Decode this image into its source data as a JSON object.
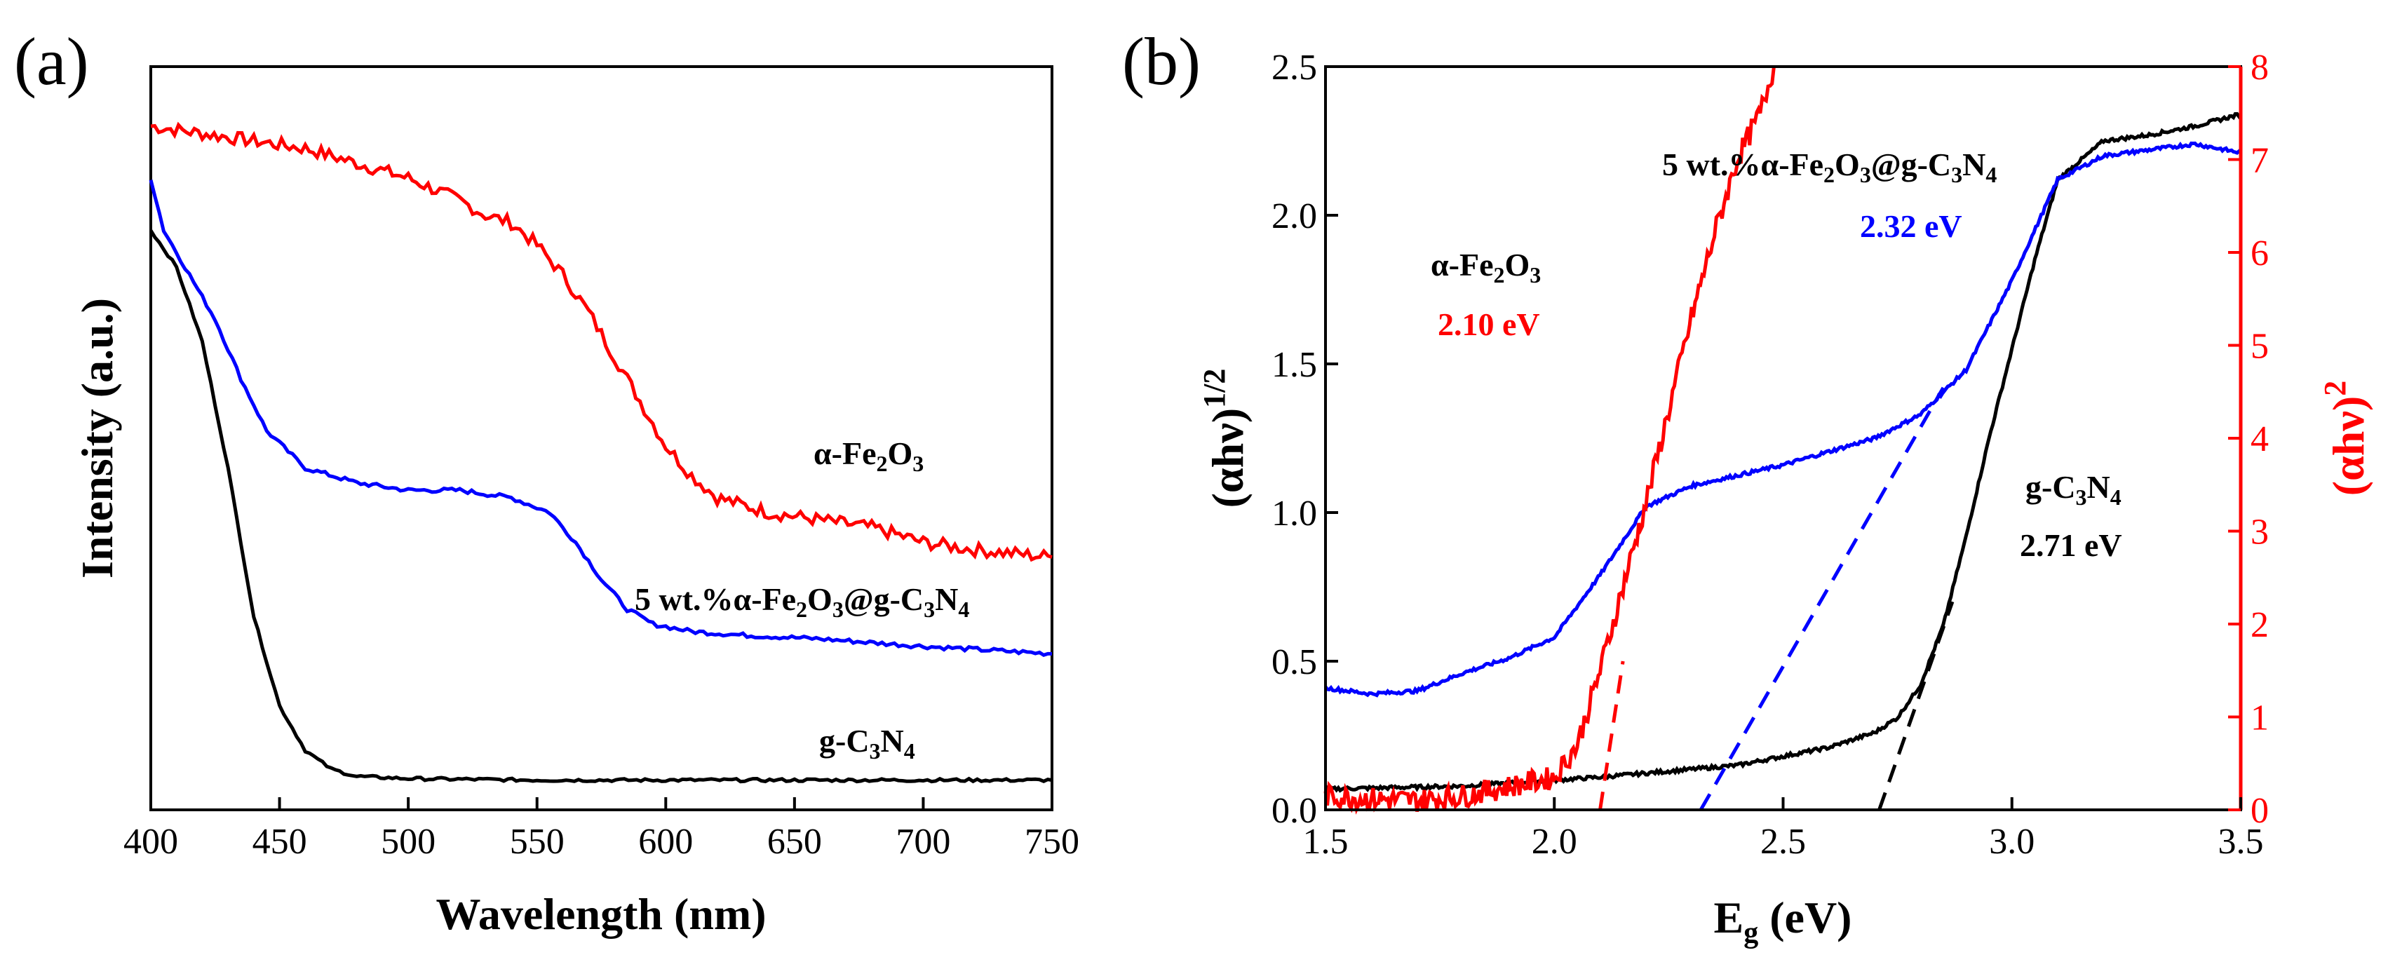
{
  "chart_data": [
    {
      "panel": "(a)",
      "type": "line",
      "xlabel": "Wavelength (nm)",
      "ylabel": "Intensity (a.u.)",
      "xlim": [
        400,
        750
      ],
      "ylim": [
        0,
        1
      ],
      "xticks": [
        400,
        450,
        500,
        550,
        600,
        650,
        700,
        750
      ],
      "yticks_shown": false,
      "series": [
        {
          "name": "α-Fe2O3",
          "label_main": "α-Fe",
          "label_sub1": "2",
          "label_mid": "O",
          "label_sub2": "3",
          "color": "#ff0000",
          "x": [
            400,
            420,
            440,
            460,
            480,
            500,
            520,
            530,
            540,
            550,
            560,
            570,
            580,
            590,
            600,
            610,
            620,
            640,
            660,
            680,
            700,
            720,
            750
          ],
          "y": [
            0.92,
            0.91,
            0.9,
            0.89,
            0.87,
            0.85,
            0.82,
            0.8,
            0.79,
            0.76,
            0.72,
            0.67,
            0.61,
            0.55,
            0.49,
            0.45,
            0.42,
            0.4,
            0.39,
            0.38,
            0.36,
            0.35,
            0.34
          ]
        },
        {
          "name": "5 wt.%α-Fe2O3@g-C3N4",
          "label_main": "5 wt.%α-Fe",
          "label_sub1": "2",
          "label_mid": "O",
          "label_sub2": "3",
          "label_mid2": "@g-C",
          "label_sub3": "3",
          "label_mid3": "N",
          "label_sub4": "4",
          "color": "#0000ff",
          "x": [
            400,
            405,
            415,
            425,
            435,
            445,
            460,
            480,
            500,
            520,
            540,
            555,
            565,
            575,
            585,
            595,
            610,
            630,
            660,
            700,
            750
          ],
          "y": [
            0.85,
            0.78,
            0.72,
            0.66,
            0.58,
            0.51,
            0.46,
            0.44,
            0.43,
            0.43,
            0.42,
            0.4,
            0.36,
            0.31,
            0.27,
            0.25,
            0.24,
            0.235,
            0.23,
            0.22,
            0.21
          ]
        },
        {
          "name": "g-C3N4",
          "label_main": "g-C",
          "label_sub1": "3",
          "label_mid": "N",
          "label_sub2": "4",
          "color": "#000000",
          "x": [
            400,
            410,
            420,
            430,
            440,
            450,
            460,
            470,
            480,
            500,
            550,
            600,
            650,
            700,
            750
          ],
          "y": [
            0.78,
            0.73,
            0.63,
            0.46,
            0.26,
            0.14,
            0.08,
            0.055,
            0.045,
            0.042,
            0.04,
            0.04,
            0.04,
            0.04,
            0.04
          ]
        }
      ]
    },
    {
      "panel": "(b)",
      "type": "line",
      "xlabel_main": "E",
      "xlabel_sub": "g",
      "xlabel_rest": " (eV)",
      "ylabel_left": "(αhν)",
      "ylabel_left_exp": "1/2",
      "ylabel_right": "(αhν)",
      "ylabel_right_exp": "2",
      "xlim": [
        1.5,
        3.5
      ],
      "ylim_left": [
        0,
        2.5
      ],
      "ylim_right": [
        0,
        8
      ],
      "xticks": [
        "1.5",
        "2.0",
        "2.5",
        "3.0",
        "3.5"
      ],
      "yticks_left": [
        "0.0",
        "0.5",
        "1.0",
        "1.5",
        "2.0",
        "2.5"
      ],
      "yticks_right": [
        "0",
        "1",
        "2",
        "3",
        "4",
        "5",
        "6",
        "7",
        "8"
      ],
      "right_axis_color": "#ff0000",
      "series": [
        {
          "name": "g-C3N4",
          "color": "#000000",
          "axis": "left",
          "x": [
            1.5,
            1.8,
            2.1,
            2.4,
            2.6,
            2.7,
            2.75,
            2.8,
            2.85,
            2.9,
            2.95,
            3.0,
            3.05,
            3.1,
            3.2,
            3.3,
            3.4,
            3.5
          ],
          "y": [
            0.07,
            0.08,
            0.11,
            0.15,
            0.21,
            0.26,
            0.31,
            0.42,
            0.62,
            0.92,
            1.25,
            1.55,
            1.85,
            2.12,
            2.25,
            2.27,
            2.3,
            2.34
          ]
        },
        {
          "name": "5 wt.%α-Fe2O3@g-C3N4",
          "color": "#0000ff",
          "axis": "left",
          "x": [
            1.5,
            1.6,
            1.7,
            1.8,
            1.9,
            2.0,
            2.1,
            2.2,
            2.3,
            2.5,
            2.7,
            2.8,
            2.9,
            3.0,
            3.1,
            3.2,
            3.3,
            3.4,
            3.5
          ],
          "y": [
            0.41,
            0.39,
            0.4,
            0.46,
            0.51,
            0.58,
            0.79,
            1.02,
            1.09,
            1.16,
            1.25,
            1.33,
            1.48,
            1.78,
            2.12,
            2.2,
            2.22,
            2.24,
            2.21
          ]
        },
        {
          "name": "α-Fe2O3",
          "color": "#ff0000",
          "axis": "right",
          "x": [
            1.5,
            1.6,
            1.7,
            1.8,
            1.9,
            2.0,
            2.05,
            2.1,
            2.15,
            2.2,
            2.25,
            2.3,
            2.35,
            2.4,
            2.45,
            2.48
          ],
          "y": [
            0.15,
            0.12,
            0.1,
            0.15,
            0.25,
            0.35,
            0.7,
            1.5,
            2.4,
            3.3,
            4.3,
            5.3,
            6.2,
            7.0,
            7.5,
            8.0
          ]
        }
      ],
      "tangents": [
        {
          "color": "#ff0000",
          "axis": "right",
          "x": [
            2.1,
            2.15
          ],
          "y": [
            0,
            1.6
          ]
        },
        {
          "color": "#0000ff",
          "axis": "left",
          "x": [
            2.32,
            2.85
          ],
          "y": [
            0,
            1.42
          ]
        },
        {
          "color": "#000000",
          "axis": "left",
          "x": [
            2.71,
            2.87
          ],
          "y": [
            0,
            0.7
          ]
        }
      ],
      "annotations": [
        {
          "name_main": "α-Fe",
          "name_sub1": "2",
          "name_mid": "O",
          "name_sub2": "3",
          "value": "2.10 eV",
          "value_color": "#ff0000"
        },
        {
          "name_main": "5 wt.%α-Fe",
          "name_sub1": "2",
          "name_mid": "O",
          "name_sub2": "3",
          "name_mid2": "@g-C",
          "name_sub3": "3",
          "name_mid3": "N",
          "name_sub4": "4",
          "value": "2.32 eV",
          "value_color": "#0000ff"
        },
        {
          "name_main": "g-C",
          "name_sub1": "3",
          "name_mid": "N",
          "name_sub2": "4",
          "value": "2.71 eV",
          "value_color": "#000000"
        }
      ]
    }
  ]
}
